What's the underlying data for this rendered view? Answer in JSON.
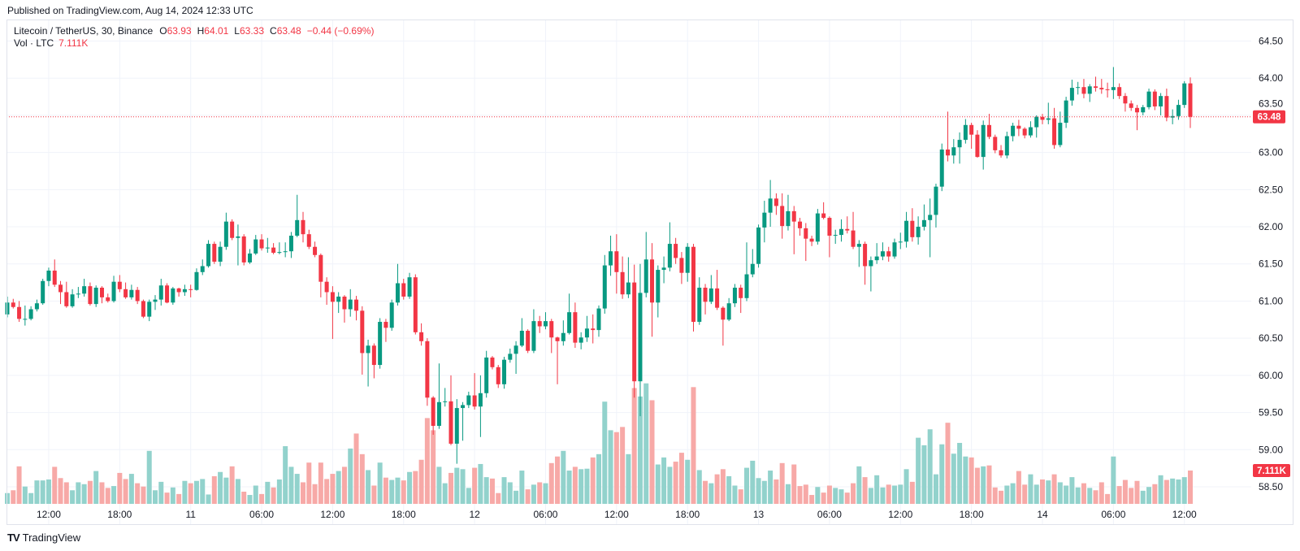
{
  "header": {
    "published": "Published on TradingView.com, Aug 14, 2024 12:33 UTC"
  },
  "legend": {
    "symbol": "Litecoin / TetherUS, 30, Binance",
    "open_label": "O",
    "open": "63.93",
    "high_label": "H",
    "high": "64.01",
    "low_label": "L",
    "low": "63.33",
    "close_label": "C",
    "close": "63.48",
    "change": "−0.44 (−0.69%)",
    "volume_label": "Vol · LTC",
    "volume": "7.111K"
  },
  "price_axis": {
    "current_price": "63.48",
    "current_volume": "7.111K"
  },
  "branding": {
    "logo_mark": "TV",
    "logo_text": "TradingView"
  },
  "chart_data": {
    "type": "candlestick",
    "title": "",
    "interval": "30",
    "ylim": [
      58.27,
      64.79
    ],
    "grid": true,
    "y_ticks": [
      "64.50",
      "64.00",
      "63.50",
      "63.00",
      "62.50",
      "62.00",
      "61.50",
      "61.00",
      "60.50",
      "60.00",
      "59.50",
      "59.00",
      "58.50"
    ],
    "x_ticks": [
      "12:00",
      "18:00",
      "11",
      "06:00",
      "12:00",
      "18:00",
      "12",
      "06:00",
      "12:00",
      "18:00",
      "13",
      "06:00",
      "12:00",
      "18:00",
      "14",
      "06:00",
      "12:00"
    ],
    "last_price": 63.48,
    "volume_unit": "K",
    "colors": {
      "up": "#089981",
      "down": "#F23645",
      "volume_up": "#92D2CC",
      "volume_down": "#F7A9A7",
      "grid": "#F0F3FA"
    },
    "candle_fields": [
      "open",
      "high",
      "low",
      "close",
      "volume"
    ],
    "candles": [
      [
        60.82,
        61.06,
        60.78,
        60.98,
        2.3
      ],
      [
        60.98,
        61.03,
        60.9,
        60.92,
        2.9
      ],
      [
        60.92,
        61.0,
        60.72,
        60.76,
        8.0
      ],
      [
        60.76,
        60.94,
        60.67,
        60.76,
        3.7
      ],
      [
        60.76,
        60.93,
        60.74,
        60.89,
        2.3
      ],
      [
        60.89,
        61.02,
        60.86,
        60.97,
        5.0
      ],
      [
        60.97,
        61.3,
        60.95,
        61.27,
        5.0
      ],
      [
        61.27,
        61.45,
        61.2,
        61.41,
        5.2
      ],
      [
        61.41,
        61.56,
        61.19,
        61.22,
        7.9
      ],
      [
        61.22,
        61.27,
        60.96,
        61.12,
        5.5
      ],
      [
        61.12,
        61.26,
        60.91,
        60.93,
        4.6
      ],
      [
        60.93,
        61.16,
        60.91,
        61.09,
        2.9
      ],
      [
        61.09,
        61.19,
        61.04,
        61.1,
        4.6
      ],
      [
        61.1,
        61.3,
        61.06,
        61.2,
        4.2
      ],
      [
        61.2,
        61.25,
        60.94,
        60.96,
        4.9
      ],
      [
        60.96,
        61.21,
        60.92,
        61.18,
        7.0
      ],
      [
        61.18,
        61.2,
        60.97,
        61.05,
        4.6
      ],
      [
        61.05,
        61.1,
        60.98,
        61.0,
        3.4
      ],
      [
        61.0,
        61.34,
        60.98,
        61.26,
        3.8
      ],
      [
        61.26,
        61.35,
        61.12,
        61.16,
        6.6
      ],
      [
        61.16,
        61.25,
        61.03,
        61.05,
        5.3
      ],
      [
        61.05,
        61.22,
        61.02,
        61.15,
        6.4
      ],
      [
        61.15,
        61.19,
        60.96,
        61.0,
        4.4
      ],
      [
        61.0,
        61.02,
        60.77,
        60.79,
        3.7
      ],
      [
        60.79,
        61.02,
        60.73,
        60.99,
        11.3
      ],
      [
        60.99,
        61.08,
        60.88,
        61.02,
        2.9
      ],
      [
        61.02,
        61.3,
        60.94,
        61.21,
        4.7
      ],
      [
        61.21,
        61.24,
        60.97,
        60.98,
        2.4
      ],
      [
        60.98,
        61.19,
        60.95,
        61.17,
        3.5
      ],
      [
        61.17,
        61.18,
        61.06,
        61.12,
        2.1
      ],
      [
        61.12,
        61.22,
        61.07,
        61.16,
        4.9
      ],
      [
        61.16,
        61.22,
        61.05,
        61.15,
        4.4
      ],
      [
        61.15,
        61.44,
        61.14,
        61.39,
        4.9
      ],
      [
        61.39,
        61.56,
        61.35,
        61.47,
        5.3
      ],
      [
        61.47,
        61.82,
        61.45,
        61.77,
        2.0
      ],
      [
        61.77,
        61.8,
        61.5,
        61.53,
        5.9
      ],
      [
        61.53,
        61.8,
        61.47,
        61.73,
        6.8
      ],
      [
        61.73,
        62.19,
        61.69,
        62.07,
        5.6
      ],
      [
        62.07,
        62.1,
        61.82,
        61.85,
        8.0
      ],
      [
        61.85,
        62.03,
        61.48,
        61.87,
        5.3
      ],
      [
        61.87,
        61.9,
        61.48,
        61.52,
        2.6
      ],
      [
        61.52,
        61.7,
        61.5,
        61.64,
        1.9
      ],
      [
        61.64,
        61.89,
        61.62,
        61.83,
        3.9
      ],
      [
        61.83,
        61.9,
        61.68,
        61.71,
        2.1
      ],
      [
        61.71,
        61.85,
        61.65,
        61.72,
        4.7
      ],
      [
        61.72,
        61.78,
        61.63,
        61.65,
        3.5
      ],
      [
        61.65,
        61.79,
        61.63,
        61.66,
        5.2
      ],
      [
        61.66,
        61.79,
        61.59,
        61.67,
        12.3
      ],
      [
        61.67,
        61.93,
        61.58,
        61.88,
        7.9
      ],
      [
        61.88,
        62.43,
        61.86,
        62.09,
        6.4
      ],
      [
        62.09,
        62.2,
        61.79,
        61.9,
        4.6
      ],
      [
        61.9,
        61.96,
        61.7,
        61.73,
        8.8
      ],
      [
        61.73,
        61.8,
        61.59,
        61.62,
        4.2
      ],
      [
        61.62,
        61.64,
        61.05,
        61.26,
        8.8
      ],
      [
        61.26,
        61.32,
        60.95,
        61.12,
        5.3
      ],
      [
        61.12,
        61.2,
        60.49,
        60.99,
        6.4
      ],
      [
        60.99,
        61.12,
        60.84,
        61.06,
        7.0
      ],
      [
        61.06,
        61.08,
        60.71,
        60.89,
        7.9
      ],
      [
        60.89,
        61.16,
        60.79,
        61.02,
        11.8
      ],
      [
        61.02,
        61.07,
        60.74,
        60.87,
        15.0
      ],
      [
        60.87,
        60.93,
        60.01,
        60.3,
        10.6
      ],
      [
        60.3,
        60.48,
        59.85,
        60.4,
        7.2
      ],
      [
        60.4,
        60.43,
        59.96,
        60.14,
        3.9
      ],
      [
        60.14,
        60.77,
        60.09,
        60.72,
        8.8
      ],
      [
        60.72,
        60.76,
        60.45,
        60.64,
        5.6
      ],
      [
        60.64,
        61.02,
        60.6,
        60.98,
        5.1
      ],
      [
        60.98,
        61.5,
        60.94,
        61.24,
        5.6
      ],
      [
        61.24,
        61.3,
        61.02,
        61.06,
        5.0
      ],
      [
        61.06,
        61.38,
        61.03,
        61.32,
        6.8
      ],
      [
        61.32,
        61.36,
        60.55,
        60.58,
        7.0
      ],
      [
        60.58,
        60.7,
        60.4,
        60.46,
        9.4
      ],
      [
        60.46,
        60.5,
        59.59,
        59.7,
        18.3
      ],
      [
        59.7,
        59.72,
        59.2,
        59.32,
        15.7
      ],
      [
        59.32,
        60.16,
        59.28,
        59.64,
        7.9
      ],
      [
        59.64,
        59.83,
        59.58,
        59.65,
        4.4
      ],
      [
        59.65,
        60.0,
        59.06,
        59.08,
        6.6
      ],
      [
        59.08,
        59.68,
        58.81,
        59.56,
        7.7
      ],
      [
        59.56,
        59.64,
        59.12,
        59.6,
        7.4
      ],
      [
        59.6,
        59.78,
        59.56,
        59.73,
        3.4
      ],
      [
        59.73,
        60.03,
        59.54,
        59.58,
        7.7
      ],
      [
        59.58,
        60.0,
        59.17,
        59.76,
        8.5
      ],
      [
        59.76,
        60.33,
        59.7,
        60.24,
        5.7
      ],
      [
        60.24,
        60.26,
        60.08,
        60.11,
        5.4
      ],
      [
        60.11,
        60.14,
        59.83,
        59.88,
        2.3
      ],
      [
        59.88,
        60.25,
        59.82,
        60.21,
        5.7
      ],
      [
        60.21,
        60.36,
        60.17,
        60.29,
        4.6
      ],
      [
        60.29,
        60.46,
        60.02,
        60.4,
        2.8
      ],
      [
        60.4,
        60.77,
        60.38,
        60.6,
        7.1
      ],
      [
        60.6,
        60.62,
        60.3,
        60.33,
        3.1
      ],
      [
        60.33,
        60.89,
        60.3,
        60.73,
        4.1
      ],
      [
        60.73,
        60.8,
        60.57,
        60.66,
        4.6
      ],
      [
        60.66,
        60.85,
        60.62,
        60.73,
        4.4
      ],
      [
        60.73,
        60.76,
        60.3,
        60.51,
        8.7
      ],
      [
        60.51,
        60.52,
        59.88,
        60.46,
        10.1
      ],
      [
        60.46,
        60.74,
        60.4,
        60.57,
        11.3
      ],
      [
        60.57,
        61.1,
        60.55,
        60.85,
        7.1
      ],
      [
        60.85,
        60.98,
        60.37,
        60.44,
        7.9
      ],
      [
        60.44,
        60.58,
        60.35,
        60.51,
        7.4
      ],
      [
        60.51,
        60.8,
        60.45,
        60.63,
        7.5
      ],
      [
        60.63,
        60.82,
        60.43,
        60.61,
        9.9
      ],
      [
        60.61,
        60.94,
        60.52,
        60.9,
        10.6
      ],
      [
        60.9,
        61.62,
        60.83,
        61.48,
        21.8
      ],
      [
        61.48,
        61.88,
        61.34,
        61.67,
        15.7
      ],
      [
        61.67,
        61.9,
        61.1,
        61.39,
        15.3
      ],
      [
        61.39,
        61.6,
        61.03,
        61.09,
        16.4
      ],
      [
        61.09,
        61.59,
        61.04,
        61.25,
        10.6
      ],
      [
        61.25,
        61.49,
        59.7,
        59.92,
        24.7
      ],
      [
        59.92,
        61.5,
        59.45,
        61.11,
        22.9
      ],
      [
        61.11,
        61.93,
        61.05,
        61.56,
        25.7
      ],
      [
        61.56,
        61.78,
        60.52,
        60.98,
        22.1
      ],
      [
        60.98,
        61.48,
        60.78,
        61.42,
        8.4
      ],
      [
        61.42,
        61.6,
        61.24,
        61.45,
        9.9
      ],
      [
        61.45,
        62.06,
        61.4,
        61.77,
        7.9
      ],
      [
        61.77,
        61.85,
        61.5,
        61.58,
        9.0
      ],
      [
        61.58,
        61.66,
        61.23,
        61.38,
        10.9
      ],
      [
        61.38,
        61.78,
        61.26,
        61.73,
        9.4
      ],
      [
        61.73,
        61.77,
        60.59,
        60.72,
        24.9
      ],
      [
        60.72,
        61.32,
        60.68,
        61.18,
        7.2
      ],
      [
        61.18,
        61.23,
        60.82,
        60.99,
        4.9
      ],
      [
        60.99,
        61.35,
        60.96,
        61.17,
        4.4
      ],
      [
        61.17,
        61.42,
        60.88,
        60.91,
        6.3
      ],
      [
        60.91,
        60.93,
        60.4,
        60.75,
        7.4
      ],
      [
        60.75,
        61.04,
        60.73,
        60.97,
        5.9
      ],
      [
        60.97,
        61.23,
        60.92,
        61.18,
        3.9
      ],
      [
        61.18,
        61.22,
        60.84,
        61.04,
        3.1
      ],
      [
        61.04,
        61.79,
        61.0,
        61.36,
        7.7
      ],
      [
        61.36,
        61.7,
        61.32,
        61.5,
        9.2
      ],
      [
        61.5,
        62.03,
        61.45,
        61.99,
        5.5
      ],
      [
        61.99,
        62.35,
        61.79,
        62.19,
        4.9
      ],
      [
        62.19,
        62.63,
        62.0,
        62.38,
        7.1
      ],
      [
        62.38,
        62.45,
        62.16,
        62.28,
        5.2
      ],
      [
        62.28,
        62.45,
        61.84,
        62.01,
        8.7
      ],
      [
        62.01,
        62.43,
        61.95,
        62.21,
        4.2
      ],
      [
        62.21,
        62.28,
        61.63,
        62.07,
        8.4
      ],
      [
        62.07,
        62.12,
        61.88,
        61.98,
        3.8
      ],
      [
        61.98,
        62.05,
        61.54,
        61.84,
        4.1
      ],
      [
        61.84,
        61.88,
        61.74,
        61.8,
        1.9
      ],
      [
        61.8,
        62.24,
        61.76,
        62.18,
        3.6
      ],
      [
        62.18,
        62.33,
        62.1,
        62.12,
        2.4
      ],
      [
        62.12,
        62.14,
        61.59,
        61.88,
        3.9
      ],
      [
        61.88,
        61.96,
        61.77,
        61.89,
        3.4
      ],
      [
        61.89,
        62.1,
        61.8,
        61.97,
        3.1
      ],
      [
        61.97,
        62.14,
        61.91,
        61.95,
        2.4
      ],
      [
        61.95,
        62.2,
        61.7,
        61.73,
        4.4
      ],
      [
        61.73,
        61.82,
        61.46,
        61.77,
        8.0
      ],
      [
        61.77,
        61.8,
        61.22,
        61.47,
        5.7
      ],
      [
        61.47,
        61.6,
        61.13,
        61.55,
        3.4
      ],
      [
        61.55,
        61.78,
        61.5,
        61.6,
        6.1
      ],
      [
        61.6,
        61.79,
        61.55,
        61.67,
        3.5
      ],
      [
        61.67,
        61.73,
        61.53,
        61.6,
        4.1
      ],
      [
        61.6,
        61.84,
        61.57,
        61.79,
        3.9
      ],
      [
        61.79,
        61.92,
        61.7,
        61.8,
        4.1
      ],
      [
        61.8,
        62.2,
        61.72,
        62.08,
        7.4
      ],
      [
        62.08,
        62.25,
        61.8,
        61.86,
        4.7
      ],
      [
        61.86,
        62.14,
        61.76,
        62.0,
        14.1
      ],
      [
        62.0,
        62.3,
        61.95,
        62.09,
        12.5
      ],
      [
        62.09,
        62.38,
        61.59,
        62.16,
        15.9
      ],
      [
        62.16,
        62.58,
        61.99,
        62.54,
        6.3
      ],
      [
        62.54,
        63.12,
        62.48,
        63.04,
        12.7
      ],
      [
        63.04,
        63.55,
        62.88,
        62.96,
        17.3
      ],
      [
        62.96,
        63.18,
        62.85,
        63.07,
        10.7
      ],
      [
        63.07,
        63.27,
        62.85,
        63.17,
        13.0
      ],
      [
        63.17,
        63.45,
        63.12,
        63.37,
        10.1
      ],
      [
        63.37,
        63.4,
        63.05,
        63.24,
        9.9
      ],
      [
        63.24,
        63.3,
        62.93,
        62.94,
        7.7
      ],
      [
        62.94,
        63.43,
        62.77,
        63.37,
        8.0
      ],
      [
        63.37,
        63.52,
        63.18,
        63.21,
        8.2
      ],
      [
        63.21,
        63.24,
        62.99,
        63.03,
        3.5
      ],
      [
        63.03,
        63.1,
        62.93,
        62.96,
        2.8
      ],
      [
        62.96,
        63.28,
        62.92,
        63.22,
        3.9
      ],
      [
        63.22,
        63.4,
        63.15,
        63.36,
        4.4
      ],
      [
        63.36,
        63.44,
        63.22,
        63.32,
        7.0
      ],
      [
        63.32,
        63.34,
        63.19,
        63.23,
        4.1
      ],
      [
        63.23,
        63.42,
        63.2,
        63.34,
        6.3
      ],
      [
        63.34,
        63.5,
        63.2,
        63.48,
        4.1
      ],
      [
        63.48,
        63.52,
        63.38,
        63.44,
        5.2
      ],
      [
        63.44,
        63.67,
        63.38,
        63.46,
        5.0
      ],
      [
        63.46,
        63.6,
        63.05,
        63.1,
        6.3
      ],
      [
        63.1,
        63.55,
        63.07,
        63.4,
        4.6
      ],
      [
        63.4,
        63.75,
        63.33,
        63.7,
        3.9
      ],
      [
        63.7,
        63.98,
        63.63,
        63.87,
        5.7
      ],
      [
        63.87,
        63.95,
        63.78,
        63.88,
        3.5
      ],
      [
        63.88,
        63.99,
        63.73,
        63.79,
        4.4
      ],
      [
        63.79,
        63.92,
        63.68,
        63.89,
        3.4
      ],
      [
        63.89,
        64.02,
        63.82,
        63.87,
        2.9
      ],
      [
        63.87,
        63.99,
        63.79,
        63.85,
        4.6
      ],
      [
        63.85,
        63.94,
        63.74,
        63.84,
        2.1
      ],
      [
        63.84,
        64.15,
        63.72,
        63.88,
        10.1
      ],
      [
        63.88,
        63.93,
        63.72,
        63.76,
        3.8
      ],
      [
        63.76,
        63.8,
        63.55,
        63.66,
        5.1
      ],
      [
        63.66,
        63.7,
        63.56,
        63.6,
        3.4
      ],
      [
        63.6,
        63.64,
        63.3,
        63.54,
        4.9
      ],
      [
        63.54,
        63.64,
        63.5,
        63.61,
        2.8
      ],
      [
        63.61,
        63.86,
        63.58,
        63.82,
        3.6
      ],
      [
        63.82,
        63.85,
        63.57,
        63.62,
        4.2
      ],
      [
        63.62,
        63.8,
        63.5,
        63.76,
        6.1
      ],
      [
        63.76,
        63.86,
        63.42,
        63.47,
        5.1
      ],
      [
        63.47,
        63.58,
        63.38,
        63.49,
        5.4
      ],
      [
        63.49,
        63.71,
        63.44,
        63.64,
        5.2
      ],
      [
        63.64,
        63.96,
        63.6,
        63.93,
        5.7
      ],
      [
        63.93,
        64.01,
        63.33,
        63.48,
        7.111
      ]
    ]
  }
}
